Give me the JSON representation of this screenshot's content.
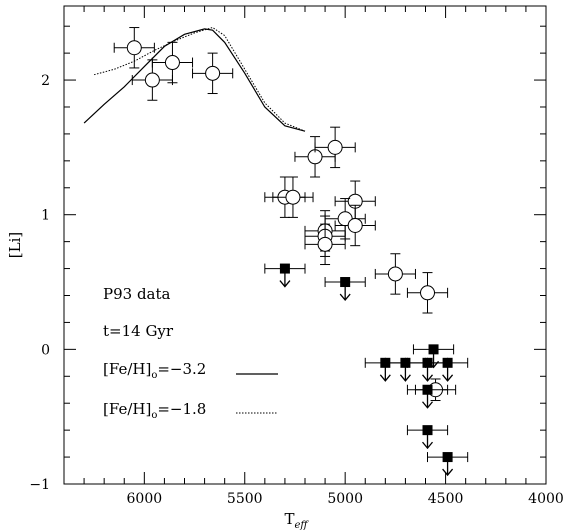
{
  "chart_data": {
    "type": "scatter",
    "title": "",
    "xlabel": "T",
    "xlabel_sub": "eff",
    "ylabel": "[Li]",
    "xlim": [
      6400,
      4000
    ],
    "ylim": [
      -1,
      2.55
    ],
    "x_ticks": [
      6000,
      5500,
      5000,
      4500,
      4000
    ],
    "x_minor_step": 100,
    "y_ticks": [
      -1,
      0,
      1,
      2
    ],
    "y_minor_step": 0.2,
    "grid": false,
    "annotations": {
      "data_label": "P93 data",
      "age_label": "t=14 Gyr",
      "feh1_label": "[Fe/H]",
      "feh1_sub": "o",
      "feh1_value": "=−3.2",
      "feh2_label": "[Fe/H]",
      "feh2_sub": "o",
      "feh2_value": "=−1.8"
    },
    "detections": [
      {
        "x": 6050,
        "y": 2.24,
        "xerr": 100,
        "yerr": 0.15
      },
      {
        "x": 5960,
        "y": 2.0,
        "xerr": 100,
        "yerr": 0.15
      },
      {
        "x": 5860,
        "y": 2.13,
        "xerr": 100,
        "yerr": 0.15
      },
      {
        "x": 5660,
        "y": 2.05,
        "xerr": 100,
        "yerr": 0.15
      },
      {
        "x": 5150,
        "y": 1.43,
        "xerr": 100,
        "yerr": 0.15
      },
      {
        "x": 5050,
        "y": 1.5,
        "xerr": 100,
        "yerr": 0.15
      },
      {
        "x": 5300,
        "y": 1.13,
        "xerr": 100,
        "yerr": 0.15
      },
      {
        "x": 5260,
        "y": 1.13,
        "xerr": 100,
        "yerr": 0.15
      },
      {
        "x": 4950,
        "y": 1.1,
        "xerr": 100,
        "yerr": 0.15
      },
      {
        "x": 5000,
        "y": 0.97,
        "xerr": 100,
        "yerr": 0.15
      },
      {
        "x": 4950,
        "y": 0.92,
        "xerr": 100,
        "yerr": 0.15
      },
      {
        "x": 5100,
        "y": 0.88,
        "xerr": 100,
        "yerr": 0.15
      },
      {
        "x": 5100,
        "y": 0.84,
        "xerr": 100,
        "yerr": 0.15
      },
      {
        "x": 5100,
        "y": 0.78,
        "xerr": 100,
        "yerr": 0.15
      },
      {
        "x": 4750,
        "y": 0.56,
        "xerr": 100,
        "yerr": 0.15
      },
      {
        "x": 4590,
        "y": 0.42,
        "xerr": 100,
        "yerr": 0.15
      },
      {
        "x": 4550,
        "y": -0.3,
        "xerr": 100,
        "yerr": 0.08
      }
    ],
    "upper_limits": [
      {
        "x": 5300,
        "y": 0.6,
        "xerr": 100
      },
      {
        "x": 5000,
        "y": 0.5,
        "xerr": 100
      },
      {
        "x": 4800,
        "y": -0.1,
        "xerr": 100
      },
      {
        "x": 4700,
        "y": -0.1,
        "xerr": 100
      },
      {
        "x": 4590,
        "y": -0.1,
        "xerr": 100
      },
      {
        "x": 4560,
        "y": 0.0,
        "xerr": 100
      },
      {
        "x": 4490,
        "y": -0.1,
        "xerr": 100
      },
      {
        "x": 4590,
        "y": -0.3,
        "xerr": 100
      },
      {
        "x": 4590,
        "y": -0.6,
        "xerr": 100
      },
      {
        "x": 4490,
        "y": -0.8,
        "xerr": 100
      }
    ],
    "series": [
      {
        "name": "[Fe/H]o=−3.2",
        "style": "solid",
        "x": [
          6300,
          6200,
          6100,
          6000,
          5900,
          5800,
          5700,
          5660,
          5600,
          5500,
          5400,
          5300,
          5200
        ],
        "y": [
          1.68,
          1.82,
          1.95,
          2.1,
          2.25,
          2.34,
          2.38,
          2.37,
          2.28,
          2.05,
          1.8,
          1.66,
          1.62
        ]
      },
      {
        "name": "[Fe/H]o=−1.8",
        "style": "dotted",
        "x": [
          6250,
          6150,
          6050,
          5950,
          5850,
          5750,
          5660,
          5600,
          5500,
          5400,
          5300,
          5200
        ],
        "y": [
          2.04,
          2.08,
          2.14,
          2.22,
          2.29,
          2.35,
          2.39,
          2.33,
          2.08,
          1.83,
          1.68,
          1.62
        ]
      }
    ]
  }
}
